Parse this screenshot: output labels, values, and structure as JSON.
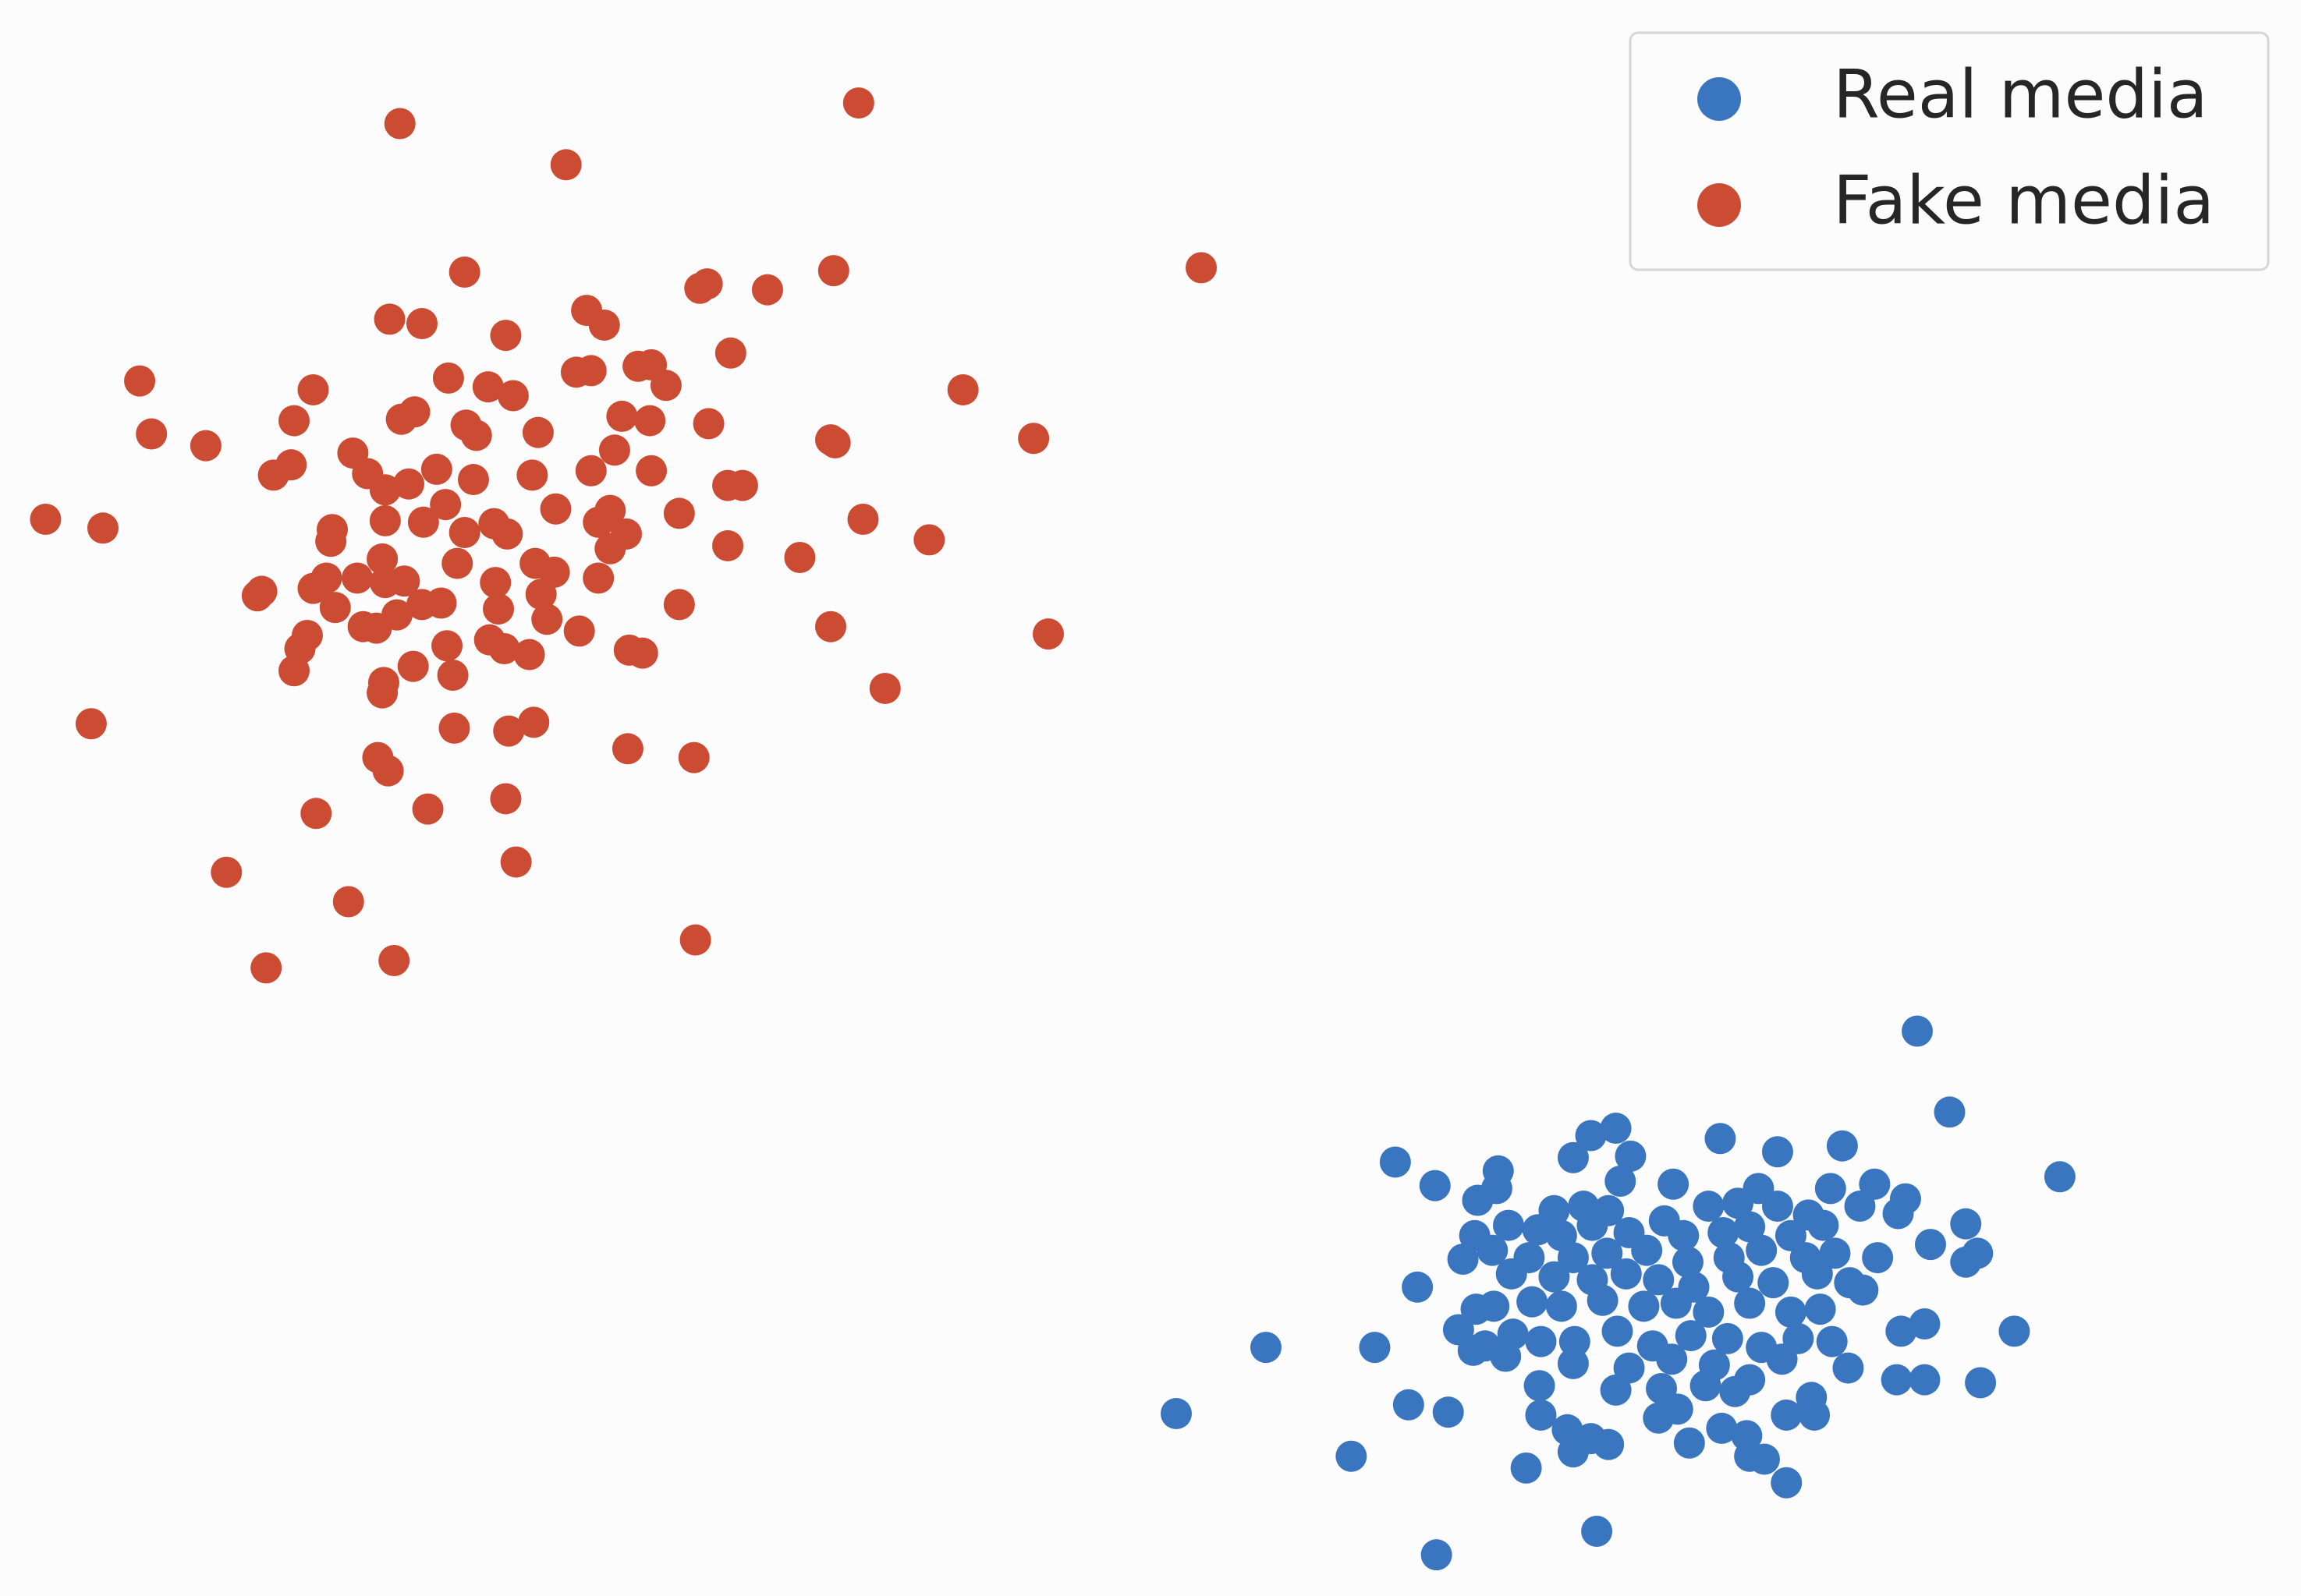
{
  "chart_data": {
    "type": "scatter",
    "xlim": [
      0,
      1565
    ],
    "ylim": [
      1085,
      0
    ],
    "legend": "upper right",
    "series": [
      {
        "name": "Real media",
        "color": "#3a76bf",
        "x": [
          1304,
          1326,
          1099,
          1082,
          1170,
          1209,
          1253,
          1070,
          1109,
          949,
          1019,
          1401,
          976,
          1005,
          1018,
          1102,
          1138,
          1196,
          1245,
          1275,
          1296,
          1057,
          1077,
          1094,
          1162,
          1182,
          1209,
          1230,
          1265,
          1291,
          1337,
          1026,
          1046,
          1062,
          1083,
          1108,
          1132,
          1145,
          1172,
          1190,
          1218,
          1240,
          1313,
          1345,
          1337,
          1003,
          995,
          1015,
          1040,
          1070,
          1093,
          1120,
          1148,
          1176,
          1198,
          1228,
          1248,
          1277,
          964,
          1028,
          1057,
          1083,
          1106,
          1128,
          1152,
          1182,
          1206,
          1236,
          1258,
          1267,
          1004,
          1016,
          1042,
          1062,
          1090,
          1118,
          1140,
          1162,
          1190,
          1218,
          1238,
          992,
          1010,
          1029,
          1048,
          1071,
          1100,
          1124,
          1150,
          1175,
          1198,
          1223,
          1246,
          1293,
          1309,
          1370,
          861,
          935,
          1002,
          1024,
          1070,
          1108,
          1137,
          1166,
          1190,
          1212,
          1257,
          1290,
          1309,
          1347,
          1047,
          1099,
          1130,
          1160,
          1180,
          1232,
          800,
          958,
          985,
          1048,
          1128,
          1141,
          1215,
          1234,
          1066,
          1082,
          1094,
          1070,
          1149,
          1171,
          1188,
          1190,
          1200,
          919,
          1038,
          1215,
          1086,
          977
        ],
        "y": [
          701,
          756,
          767,
          772,
          774,
          783,
          779,
          787,
          786,
          790,
          796,
          800,
          806,
          816,
          808,
          803,
          805,
          808,
          808,
          805,
          815,
          823,
          820,
          823,
          820,
          818,
          820,
          826,
          820,
          825,
          832,
          833,
          836,
          840,
          833,
          838,
          830,
          840,
          838,
          834,
          840,
          833,
          846,
          852,
          858,
          840,
          856,
          850,
          855,
          855,
          852,
          850,
          858,
          855,
          850,
          855,
          852,
          855,
          875,
          866,
          868,
          870,
          866,
          870,
          875,
          868,
          872,
          866,
          872,
          877,
          890,
          888,
          885,
          888,
          884,
          888,
          886,
          892,
          886,
          892,
          890,
          904,
          915,
          907,
          912,
          912,
          905,
          915,
          908,
          910,
          916,
          910,
          912,
          905,
          900,
          905,
          916,
          916,
          918,
          922,
          927,
          930,
          924,
          928,
          938,
          924,
          930,
          938,
          938,
          940,
          942,
          945,
          944,
          942,
          946,
          950,
          961,
          955,
          960,
          962,
          964,
          958,
          962,
          962,
          972,
          978,
          982,
          987,
          981,
          971,
          976,
          990,
          992,
          990,
          998,
          1008,
          1041,
          1057
        ]
      },
      {
        "name": "Fake media",
        "color": "#cc4b33",
        "x": [
          272,
          584,
          385,
          316,
          567,
          817,
          481,
          476,
          522,
          265,
          287,
          399,
          411,
          344,
          497,
          95,
          213,
          305,
          332,
          349,
          392,
          402,
          434,
          443,
          453,
          655,
          103,
          140,
          200,
          273,
          282,
          317,
          324,
          366,
          423,
          442,
          482,
          565,
          568,
          703,
          186,
          198,
          240,
          250,
          262,
          278,
          297,
          322,
          362,
          402,
          418,
          443,
          495,
          505,
          31,
          70,
          226,
          225,
          262,
          288,
          303,
          316,
          336,
          345,
          378,
          407,
          415,
          426,
          415,
          462,
          495,
          544,
          587,
          632,
          175,
          178,
          213,
          222,
          228,
          243,
          260,
          262,
          275,
          287,
          300,
          311,
          337,
          339,
          364,
          377,
          368,
          372,
          407,
          394,
          462,
          565,
          713,
          209,
          204,
          200,
          247,
          256,
          270,
          281,
          304,
          308,
          333,
          343,
          360,
          428,
          437,
          261,
          260,
          602,
          62,
          309,
          346,
          363,
          427,
          472,
          257,
          264,
          291,
          344,
          215,
          154,
          351,
          237,
          473,
          181,
          268
        ],
        "y": [
          84,
          70,
          112,
          185,
          184,
          182,
          193,
          196,
          197,
          217,
          220,
          211,
          221,
          228,
          240,
          259,
          265,
          257,
          263,
          269,
          253,
          252,
          249,
          248,
          262,
          265,
          295,
          303,
          286,
          285,
          280,
          289,
          296,
          294,
          283,
          286,
          288,
          299,
          301,
          298,
          323,
          316,
          308,
          322,
          333,
          329,
          319,
          326,
          323,
          320,
          306,
          320,
          330,
          330,
          353,
          359,
          360,
          368,
          354,
          355,
          343,
          362,
          356,
          363,
          346,
          355,
          347,
          363,
          373,
          349,
          371,
          379,
          353,
          367,
          405,
          402,
          400,
          393,
          413,
          393,
          380,
          396,
          395,
          411,
          410,
          383,
          396,
          414,
          383,
          389,
          404,
          421,
          393,
          429,
          411,
          426,
          431,
          432,
          441,
          456,
          426,
          427,
          418,
          453,
          439,
          459,
          435,
          441,
          445,
          442,
          444,
          464,
          471,
          468,
          492,
          495,
          497,
          491,
          509,
          515,
          515,
          524,
          550,
          543,
          553,
          593,
          586,
          613,
          639,
          658,
          653
        ]
      }
    ]
  }
}
